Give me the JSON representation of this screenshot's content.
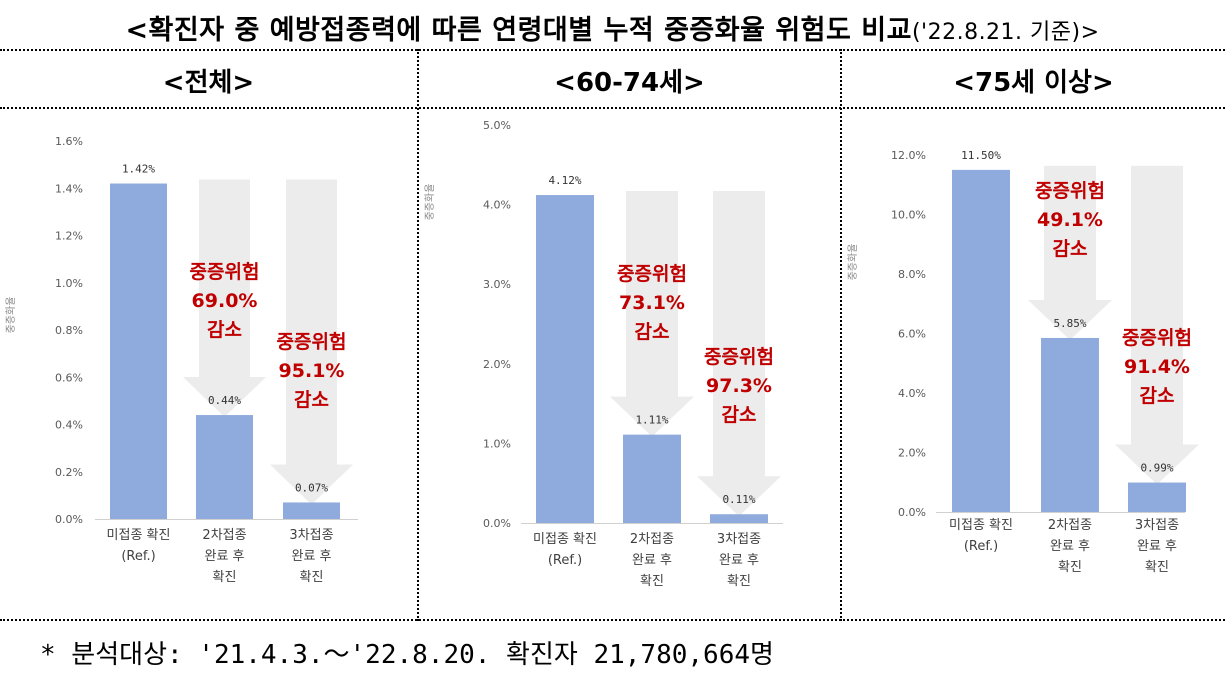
{
  "title": {
    "main": "<확진자 중 예방접종력에 따른 연령대별 누적 중증화율 위험도 비교",
    "date": "('22.8.21. 기준)>"
  },
  "panels": [
    {
      "heading": "<전체>"
    },
    {
      "heading": "<60-74세>"
    },
    {
      "heading": "<75세 이상>"
    }
  ],
  "footnote": "* 분석대상: '21.4.3.～'22.8.20. 확진자 21,780,664명",
  "colors": {
    "bar": "#8faadc",
    "arrow": "#ececec",
    "risk_text": "#c00000",
    "axis_text": "#595959"
  },
  "chart_data": [
    {
      "type": "bar",
      "title": "<전체>",
      "ylabel": "중증화율",
      "categories": [
        [
          "미접종 확진",
          "(Ref.)"
        ],
        [
          "2차접종",
          "완료 후",
          "확진"
        ],
        [
          "3차접종",
          "완료 후",
          "확진"
        ]
      ],
      "values": [
        1.42,
        0.44,
        0.07
      ],
      "value_labels": [
        "1.42%",
        "0.44%",
        "0.07%"
      ],
      "ylim": [
        0,
        1.6
      ],
      "yticks": [
        0,
        0.2,
        0.4,
        0.6,
        0.8,
        1.0,
        1.2,
        1.4,
        1.6
      ],
      "ytick_labels": [
        "0.0%",
        "0.2%",
        "0.4%",
        "0.6%",
        "0.8%",
        "1.0%",
        "1.2%",
        "1.4%",
        "1.6%"
      ],
      "risk_annotations": [
        null,
        [
          "중증위험",
          "69.0%",
          "감소"
        ],
        [
          "중증위험",
          "95.1%",
          "감소"
        ]
      ]
    },
    {
      "type": "bar",
      "title": "<60-74세>",
      "ylabel": "중증화율",
      "categories": [
        [
          "미접종 확진",
          "(Ref.)"
        ],
        [
          "2차접종",
          "완료 후",
          "확진"
        ],
        [
          "3차접종",
          "완료 후",
          "확진"
        ]
      ],
      "values": [
        4.12,
        1.11,
        0.11
      ],
      "value_labels": [
        "4.12%",
        "1.11%",
        "0.11%"
      ],
      "ylim": [
        0,
        5.0
      ],
      "yticks": [
        0,
        1,
        2,
        3,
        4,
        5
      ],
      "ytick_labels": [
        "0.0%",
        "1.0%",
        "2.0%",
        "3.0%",
        "4.0%",
        "5.0%"
      ],
      "risk_annotations": [
        null,
        [
          "중증위험",
          "73.1%",
          "감소"
        ],
        [
          "중증위험",
          "97.3%",
          "감소"
        ]
      ]
    },
    {
      "type": "bar",
      "title": "<75세 이상>",
      "ylabel": "중증화율",
      "categories": [
        [
          "미접종 확진",
          "(Ref.)"
        ],
        [
          "2차접종",
          "완료 후",
          "확진"
        ],
        [
          "3차접종",
          "완료 후",
          "확진"
        ]
      ],
      "values": [
        11.5,
        5.85,
        0.99
      ],
      "value_labels": [
        "11.50%",
        "5.85%",
        "0.99%"
      ],
      "ylim": [
        0,
        12.0
      ],
      "yticks": [
        0,
        2,
        4,
        6,
        8,
        10,
        12
      ],
      "ytick_labels": [
        "0.0%",
        "2.0%",
        "4.0%",
        "6.0%",
        "8.0%",
        "10.0%",
        "12.0%"
      ],
      "risk_annotations": [
        null,
        [
          "중증위험",
          "49.1%",
          "감소"
        ],
        [
          "중증위험",
          "91.4%",
          "감소"
        ]
      ]
    }
  ]
}
